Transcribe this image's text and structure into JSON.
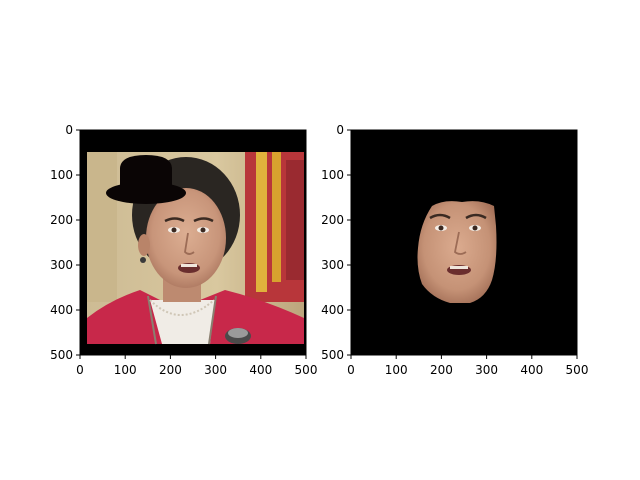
{
  "chart_data": [
    {
      "type": "image",
      "panel": "left",
      "content": "photo of a woman with a short dark haircut in a red jacket in front of flags, with a black bowler hat overlaid on her head and a microphone at bottom right",
      "xlim": [
        0,
        500
      ],
      "ylim": [
        500,
        0
      ],
      "xticks": [
        0,
        100,
        200,
        300,
        400,
        500
      ],
      "yticks": [
        0,
        100,
        200,
        300,
        400,
        500
      ],
      "photo_extent": {
        "x": [
          15,
          485
        ],
        "y": [
          48,
          478
        ]
      },
      "hat_center": [
        150,
        115
      ],
      "colors": {
        "border": "#000000",
        "jacket": "#c8284a",
        "wall": "#d6c49a",
        "hat": "#0a0505"
      }
    },
    {
      "type": "image",
      "panel": "right",
      "content": "the same face cropped out and shown alone on a black background",
      "xlim": [
        0,
        500
      ],
      "ylim": [
        500,
        0
      ],
      "xticks": [
        0,
        100,
        200,
        300,
        400,
        500
      ],
      "yticks": [
        0,
        100,
        200,
        300,
        400,
        500
      ],
      "face_extent": {
        "x": [
          150,
          325
        ],
        "y": [
          160,
          385
        ]
      },
      "colors": {
        "background": "#000000",
        "skin": "#c99a7e"
      }
    }
  ]
}
